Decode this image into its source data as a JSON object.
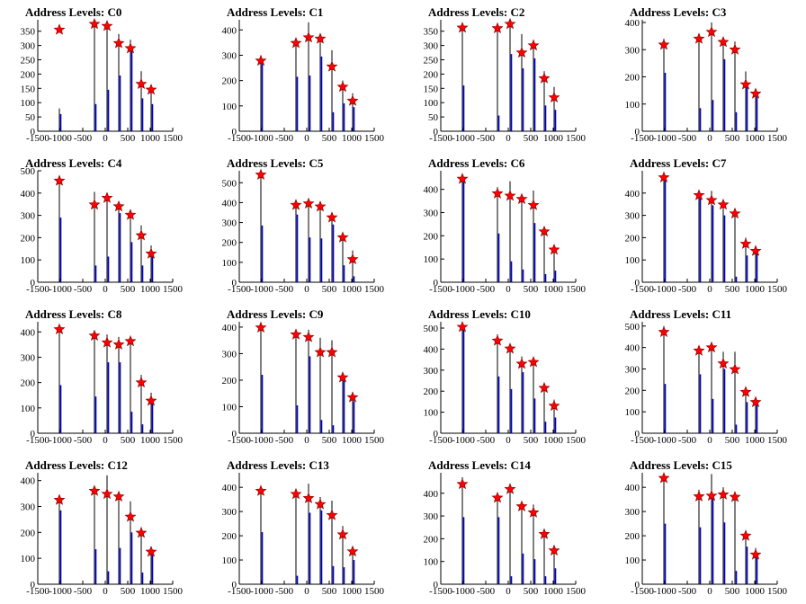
{
  "chart_data": [
    {
      "type": "bar",
      "title": "Address Levels: C0",
      "xlim": [
        -1500,
        1500
      ],
      "xticks": [
        -1500,
        -1000,
        -500,
        0,
        500,
        1000,
        1500
      ],
      "ylim": [
        0,
        390
      ],
      "yticks": [
        0,
        50,
        100,
        150,
        200,
        250,
        300,
        350
      ],
      "peaks": [
        {
          "x": -1020,
          "black": 80,
          "blue": 60,
          "star": 355
        },
        {
          "x": -240,
          "black": 385,
          "blue": 95,
          "star": 375
        },
        {
          "x": 40,
          "black": 375,
          "blue": 145,
          "star": 368
        },
        {
          "x": 300,
          "black": 340,
          "blue": 195,
          "star": 308
        },
        {
          "x": 560,
          "black": 320,
          "blue": 285,
          "star": 290
        },
        {
          "x": 800,
          "black": 210,
          "blue": 115,
          "star": 165
        },
        {
          "x": 1020,
          "black": 155,
          "blue": 95,
          "star": 145
        }
      ]
    },
    {
      "type": "bar",
      "title": "Address Levels: C1",
      "xlim": [
        -1500,
        1500
      ],
      "xticks": [
        -1500,
        -1000,
        -500,
        0,
        500,
        1000,
        1500
      ],
      "ylim": [
        0,
        440
      ],
      "yticks": [
        0,
        100,
        200,
        300,
        400
      ],
      "peaks": [
        {
          "x": -1020,
          "black": 300,
          "blue": 265,
          "star": 278
        },
        {
          "x": -240,
          "black": 360,
          "blue": 215,
          "star": 348
        },
        {
          "x": 40,
          "black": 430,
          "blue": 220,
          "star": 370
        },
        {
          "x": 300,
          "black": 380,
          "blue": 295,
          "star": 365
        },
        {
          "x": 560,
          "black": 320,
          "blue": 75,
          "star": 255
        },
        {
          "x": 800,
          "black": 200,
          "blue": 110,
          "star": 175
        },
        {
          "x": 1020,
          "black": 150,
          "blue": 95,
          "star": 120
        }
      ]
    },
    {
      "type": "bar",
      "title": "Address Levels: C2",
      "xlim": [
        -1500,
        1500
      ],
      "xticks": [
        -1500,
        -1000,
        -500,
        0,
        500,
        1000,
        1500
      ],
      "ylim": [
        0,
        390
      ],
      "yticks": [
        0,
        50,
        100,
        150,
        200,
        250,
        300,
        350
      ],
      "peaks": [
        {
          "x": -1020,
          "black": 380,
          "blue": 160,
          "star": 362
        },
        {
          "x": -240,
          "black": 370,
          "blue": 55,
          "star": 360
        },
        {
          "x": 40,
          "black": 385,
          "blue": 270,
          "star": 375
        },
        {
          "x": 300,
          "black": 340,
          "blue": 220,
          "star": 275
        },
        {
          "x": 560,
          "black": 320,
          "blue": 255,
          "star": 300
        },
        {
          "x": 800,
          "black": 210,
          "blue": 90,
          "star": 185
        },
        {
          "x": 1020,
          "black": 155,
          "blue": 75,
          "star": 118
        }
      ]
    },
    {
      "type": "bar",
      "title": "Address Levels: C3",
      "xlim": [
        -1500,
        1500
      ],
      "xticks": [
        -1500,
        -1000,
        -500,
        0,
        500,
        1000,
        1500
      ],
      "ylim": [
        0,
        410
      ],
      "yticks": [
        0,
        100,
        200,
        300,
        400
      ],
      "peaks": [
        {
          "x": -1020,
          "black": 340,
          "blue": 215,
          "star": 318
        },
        {
          "x": -240,
          "black": 360,
          "blue": 85,
          "star": 340
        },
        {
          "x": 40,
          "black": 400,
          "blue": 115,
          "star": 365
        },
        {
          "x": 300,
          "black": 340,
          "blue": 265,
          "star": 328
        },
        {
          "x": 560,
          "black": 330,
          "blue": 70,
          "star": 300
        },
        {
          "x": 800,
          "black": 220,
          "blue": 175,
          "star": 172
        },
        {
          "x": 1020,
          "black": 145,
          "blue": 125,
          "star": 138
        }
      ]
    },
    {
      "type": "bar",
      "title": "Address Levels: C4",
      "xlim": [
        -1500,
        1500
      ],
      "xticks": [
        -1500,
        -1000,
        -500,
        0,
        500,
        1000,
        1500
      ],
      "ylim": [
        0,
        500
      ],
      "yticks": [
        0,
        100,
        200,
        300,
        400,
        500
      ],
      "peaks": [
        {
          "x": -1020,
          "black": 470,
          "blue": 290,
          "star": 455
        },
        {
          "x": -240,
          "black": 405,
          "blue": 75,
          "star": 348
        },
        {
          "x": 40,
          "black": 400,
          "blue": 115,
          "star": 378
        },
        {
          "x": 300,
          "black": 355,
          "blue": 310,
          "star": 340
        },
        {
          "x": 560,
          "black": 325,
          "blue": 180,
          "star": 302
        },
        {
          "x": 800,
          "black": 255,
          "blue": 75,
          "star": 210
        },
        {
          "x": 1020,
          "black": 165,
          "blue": 130,
          "star": 128
        }
      ]
    },
    {
      "type": "bar",
      "title": "Address Levels: C5",
      "xlim": [
        -1500,
        1500
      ],
      "xticks": [
        -1500,
        -1000,
        -500,
        0,
        500,
        1000,
        1500
      ],
      "ylim": [
        0,
        560
      ],
      "yticks": [
        0,
        100,
        200,
        300,
        400,
        500
      ],
      "peaks": [
        {
          "x": -1020,
          "black": 560,
          "blue": 285,
          "star": 540
        },
        {
          "x": -240,
          "black": 400,
          "blue": 340,
          "star": 388
        },
        {
          "x": 40,
          "black": 410,
          "blue": 225,
          "star": 395
        },
        {
          "x": 300,
          "black": 390,
          "blue": 220,
          "star": 380
        },
        {
          "x": 560,
          "black": 340,
          "blue": 290,
          "star": 325
        },
        {
          "x": 800,
          "black": 240,
          "blue": 85,
          "star": 225
        },
        {
          "x": 1020,
          "black": 160,
          "blue": 30,
          "star": 115
        }
      ]
    },
    {
      "type": "bar",
      "title": "Address Levels: C6",
      "xlim": [
        -1500,
        1500
      ],
      "xticks": [
        -1500,
        -1000,
        -500,
        0,
        500,
        1000,
        1500
      ],
      "ylim": [
        0,
        480
      ],
      "yticks": [
        0,
        100,
        200,
        300,
        400
      ],
      "peaks": [
        {
          "x": -1020,
          "black": 460,
          "blue": 445,
          "star": 445
        },
        {
          "x": -240,
          "black": 410,
          "blue": 210,
          "star": 382
        },
        {
          "x": 40,
          "black": 435,
          "blue": 90,
          "star": 372
        },
        {
          "x": 300,
          "black": 380,
          "blue": 55,
          "star": 358
        },
        {
          "x": 560,
          "black": 395,
          "blue": 255,
          "star": 332
        },
        {
          "x": 800,
          "black": 240,
          "blue": 35,
          "star": 218
        },
        {
          "x": 1020,
          "black": 155,
          "blue": 50,
          "star": 140
        }
      ]
    },
    {
      "type": "bar",
      "title": "Address Levels: C7",
      "xlim": [
        -1500,
        1500
      ],
      "xticks": [
        -1500,
        -1000,
        -500,
        0,
        500,
        1000,
        1500
      ],
      "ylim": [
        0,
        500
      ],
      "yticks": [
        0,
        100,
        200,
        300,
        400
      ],
      "peaks": [
        {
          "x": -1020,
          "black": 480,
          "blue": 460,
          "star": 470
        },
        {
          "x": -240,
          "black": 400,
          "blue": 375,
          "star": 390
        },
        {
          "x": 40,
          "black": 410,
          "blue": 345,
          "star": 368
        },
        {
          "x": 300,
          "black": 370,
          "blue": 300,
          "star": 348
        },
        {
          "x": 560,
          "black": 330,
          "blue": 25,
          "star": 308
        },
        {
          "x": 800,
          "black": 200,
          "blue": 120,
          "star": 172
        },
        {
          "x": 1020,
          "black": 155,
          "blue": 130,
          "star": 140
        }
      ]
    },
    {
      "type": "bar",
      "title": "Address Levels: C8",
      "xlim": [
        -1500,
        1500
      ],
      "xticks": [
        -1500,
        -1000,
        -500,
        0,
        500,
        1000,
        1500
      ],
      "ylim": [
        0,
        440
      ],
      "yticks": [
        0,
        100,
        200,
        300,
        400
      ],
      "peaks": [
        {
          "x": -1020,
          "black": 430,
          "blue": 190,
          "star": 410
        },
        {
          "x": -240,
          "black": 400,
          "blue": 145,
          "star": 385
        },
        {
          "x": 40,
          "black": 390,
          "blue": 280,
          "star": 358
        },
        {
          "x": 300,
          "black": 380,
          "blue": 280,
          "star": 350
        },
        {
          "x": 560,
          "black": 370,
          "blue": 85,
          "star": 363
        },
        {
          "x": 800,
          "black": 230,
          "blue": 35,
          "star": 200
        },
        {
          "x": 1020,
          "black": 160,
          "blue": 130,
          "star": 128
        }
      ]
    },
    {
      "type": "bar",
      "title": "Address Levels: C9",
      "xlim": [
        -1500,
        1500
      ],
      "xticks": [
        -1500,
        -1000,
        -500,
        0,
        500,
        1000,
        1500
      ],
      "ylim": [
        0,
        420
      ],
      "yticks": [
        0,
        100,
        200,
        300,
        400
      ],
      "peaks": [
        {
          "x": -1020,
          "black": 410,
          "blue": 220,
          "star": 398
        },
        {
          "x": -240,
          "black": 385,
          "blue": 105,
          "star": 372
        },
        {
          "x": 40,
          "black": 390,
          "blue": 290,
          "star": 362
        },
        {
          "x": 300,
          "black": 360,
          "blue": 50,
          "star": 305
        },
        {
          "x": 560,
          "black": 350,
          "blue": 30,
          "star": 305
        },
        {
          "x": 800,
          "black": 230,
          "blue": 200,
          "star": 210
        },
        {
          "x": 1020,
          "black": 150,
          "blue": 120,
          "star": 135
        }
      ]
    },
    {
      "type": "bar",
      "title": "Address Levels: C10",
      "xlim": [
        -1500,
        1500
      ],
      "xticks": [
        -1500,
        -1000,
        -500,
        0,
        500,
        1000,
        1500
      ],
      "ylim": [
        0,
        530
      ],
      "yticks": [
        0,
        100,
        200,
        300,
        400,
        500
      ],
      "peaks": [
        {
          "x": -1020,
          "black": 525,
          "blue": 505,
          "star": 505
        },
        {
          "x": -240,
          "black": 470,
          "blue": 270,
          "star": 440
        },
        {
          "x": 40,
          "black": 420,
          "blue": 210,
          "star": 402
        },
        {
          "x": 300,
          "black": 365,
          "blue": 290,
          "star": 330
        },
        {
          "x": 560,
          "black": 355,
          "blue": 165,
          "star": 338
        },
        {
          "x": 800,
          "black": 230,
          "blue": 55,
          "star": 215
        },
        {
          "x": 1020,
          "black": 160,
          "blue": 75,
          "star": 130
        }
      ]
    },
    {
      "type": "bar",
      "title": "Address Levels: C11",
      "xlim": [
        -1500,
        1500
      ],
      "xticks": [
        -1500,
        -1000,
        -500,
        0,
        500,
        1000,
        1500
      ],
      "ylim": [
        0,
        520
      ],
      "yticks": [
        0,
        100,
        200,
        300,
        400,
        500
      ],
      "peaks": [
        {
          "x": -1020,
          "black": 500,
          "blue": 230,
          "star": 472
        },
        {
          "x": -240,
          "black": 400,
          "blue": 275,
          "star": 385
        },
        {
          "x": 40,
          "black": 420,
          "blue": 160,
          "star": 400
        },
        {
          "x": 300,
          "black": 380,
          "blue": 300,
          "star": 325
        },
        {
          "x": 560,
          "black": 380,
          "blue": 40,
          "star": 298
        },
        {
          "x": 800,
          "black": 215,
          "blue": 145,
          "star": 192
        },
        {
          "x": 1020,
          "black": 160,
          "blue": 135,
          "star": 145
        }
      ]
    },
    {
      "type": "bar",
      "title": "Address Levels: C12",
      "xlim": [
        -1500,
        1500
      ],
      "xticks": [
        -1500,
        -1000,
        -500,
        0,
        500,
        1000,
        1500
      ],
      "ylim": [
        0,
        430
      ],
      "yticks": [
        0,
        100,
        200,
        300,
        400
      ],
      "peaks": [
        {
          "x": -1020,
          "black": 340,
          "blue": 285,
          "star": 325
        },
        {
          "x": -240,
          "black": 370,
          "blue": 135,
          "star": 360
        },
        {
          "x": 40,
          "black": 420,
          "blue": 50,
          "star": 348
        },
        {
          "x": 300,
          "black": 350,
          "blue": 140,
          "star": 338
        },
        {
          "x": 560,
          "black": 320,
          "blue": 200,
          "star": 260
        },
        {
          "x": 800,
          "black": 220,
          "blue": 45,
          "star": 198
        },
        {
          "x": 1020,
          "black": 140,
          "blue": 120,
          "star": 125
        }
      ]
    },
    {
      "type": "bar",
      "title": "Address Levels: C13",
      "xlim": [
        -1500,
        1500
      ],
      "xticks": [
        -1500,
        -1000,
        -500,
        0,
        500,
        1000,
        1500
      ],
      "ylim": [
        0,
        460
      ],
      "yticks": [
        0,
        100,
        200,
        300,
        400
      ],
      "peaks": [
        {
          "x": -1020,
          "black": 400,
          "blue": 215,
          "star": 385
        },
        {
          "x": -240,
          "black": 385,
          "blue": 35,
          "star": 372
        },
        {
          "x": 40,
          "black": 415,
          "blue": 295,
          "star": 355
        },
        {
          "x": 300,
          "black": 360,
          "blue": 305,
          "star": 330
        },
        {
          "x": 560,
          "black": 345,
          "blue": 75,
          "star": 285
        },
        {
          "x": 800,
          "black": 240,
          "blue": 70,
          "star": 205
        },
        {
          "x": 1020,
          "black": 145,
          "blue": 100,
          "star": 135
        }
      ]
    },
    {
      "type": "bar",
      "title": "Address Levels: C14",
      "xlim": [
        -1500,
        1500
      ],
      "xticks": [
        -1500,
        -1000,
        -500,
        0,
        500,
        1000,
        1500
      ],
      "ylim": [
        0,
        490
      ],
      "yticks": [
        0,
        100,
        200,
        300,
        400
      ],
      "peaks": [
        {
          "x": -1020,
          "black": 470,
          "blue": 295,
          "star": 440
        },
        {
          "x": -240,
          "black": 400,
          "blue": 295,
          "star": 380
        },
        {
          "x": 40,
          "black": 430,
          "blue": 35,
          "star": 418
        },
        {
          "x": 300,
          "black": 355,
          "blue": 135,
          "star": 342
        },
        {
          "x": 560,
          "black": 350,
          "blue": 110,
          "star": 315
        },
        {
          "x": 800,
          "black": 230,
          "blue": 35,
          "star": 220
        },
        {
          "x": 1020,
          "black": 160,
          "blue": 70,
          "star": 148
        }
      ]
    },
    {
      "type": "bar",
      "title": "Address Levels: C15",
      "xlim": [
        -1500,
        1500
      ],
      "xticks": [
        -1500,
        -1000,
        -500,
        0,
        500,
        1000,
        1500
      ],
      "ylim": [
        0,
        460
      ],
      "yticks": [
        0,
        100,
        200,
        300,
        400
      ],
      "peaks": [
        {
          "x": -1020,
          "black": 450,
          "blue": 250,
          "star": 438
        },
        {
          "x": -240,
          "black": 390,
          "blue": 235,
          "star": 362
        },
        {
          "x": 40,
          "black": 455,
          "blue": 365,
          "star": 365
        },
        {
          "x": 300,
          "black": 400,
          "blue": 255,
          "star": 370
        },
        {
          "x": 560,
          "black": 380,
          "blue": 55,
          "star": 360
        },
        {
          "x": 800,
          "black": 205,
          "blue": 155,
          "star": 200
        },
        {
          "x": 1020,
          "black": 150,
          "blue": 110,
          "star": 122
        }
      ]
    }
  ],
  "colors": {
    "blue_series": "#0000cc",
    "black_series": "#000000",
    "marker_fill": "#ff0000",
    "marker_stroke": "#800000",
    "axis": "#000000"
  }
}
